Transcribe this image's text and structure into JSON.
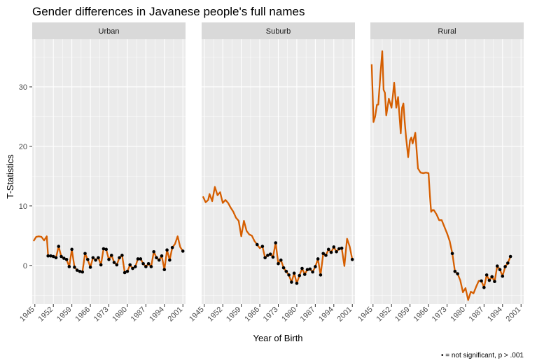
{
  "chart_data": {
    "type": "line",
    "title": "Gender differences in Javanese people's full names",
    "xlabel": "Year of Birth",
    "ylabel": "T-Statistics",
    "caption": "• = not significant, p > .001",
    "x_ticks": [
      1945,
      1952,
      1959,
      1966,
      1973,
      1980,
      1987,
      1994,
      2001
    ],
    "y_ticks": [
      0,
      10,
      20,
      30
    ],
    "xlim": [
      1944,
      2002
    ],
    "ylim": [
      -6.5,
      38
    ],
    "grid": true,
    "line_color": "#d55e00",
    "point_color": "#000000",
    "panel_bg": "#ebebeb",
    "strip_bg": "#d9d9d9",
    "panels": [
      {
        "label": "Urban",
        "x": [
          1944.5,
          1945.5,
          1946.5,
          1947.5,
          1948.5,
          1949.5,
          1950,
          1951,
          1952,
          1953,
          1954,
          1955,
          1956,
          1957,
          1958,
          1959,
          1960,
          1961,
          1962,
          1963,
          1964,
          1965,
          1966,
          1967,
          1968,
          1969,
          1970,
          1971,
          1972,
          1973,
          1974,
          1975,
          1976,
          1977,
          1978,
          1979,
          1980,
          1981,
          1982,
          1983,
          1984,
          1985,
          1986,
          1987,
          1988,
          1989,
          1990,
          1991,
          1992,
          1993,
          1994,
          1995,
          1996,
          1997,
          1998,
          1999,
          2000,
          2001
        ],
        "y": [
          4.1,
          4.8,
          4.9,
          4.8,
          4.2,
          4.9,
          1.6,
          1.6,
          1.5,
          1.3,
          3.2,
          1.5,
          1.2,
          1.0,
          -0.2,
          2.7,
          -0.3,
          -0.8,
          -1.0,
          -1.1,
          2.0,
          1.0,
          -0.3,
          1.3,
          0.9,
          1.3,
          0.1,
          2.8,
          2.7,
          1.0,
          1.7,
          0.5,
          0.1,
          1.3,
          1.7,
          -1.2,
          -1.0,
          0.1,
          -0.5,
          -0.2,
          1.1,
          1.1,
          0.3,
          -0.2,
          0.3,
          -0.2,
          2.3,
          1.3,
          0.9,
          1.6,
          -0.7,
          2.6,
          0.9,
          3.0,
          3.6,
          4.9,
          3.1,
          2.4
        ],
        "not_significant": [
          1950,
          1951,
          1952,
          1953,
          1954,
          1955,
          1956,
          1957,
          1958,
          1959,
          1960,
          1961,
          1962,
          1963,
          1964,
          1965,
          1966,
          1967,
          1968,
          1969,
          1970,
          1971,
          1972,
          1973,
          1974,
          1975,
          1976,
          1977,
          1978,
          1979,
          1980,
          1981,
          1982,
          1983,
          1984,
          1985,
          1986,
          1987,
          1988,
          1989,
          1990,
          1991,
          1992,
          1993,
          1994,
          1995,
          1996,
          1997,
          2001
        ]
      },
      {
        "label": "Suburb",
        "x": [
          1944.5,
          1945.5,
          1946.5,
          1947,
          1948,
          1949,
          1950,
          1951,
          1952,
          1953,
          1954,
          1955,
          1956,
          1957,
          1958,
          1959,
          1960,
          1961,
          1962,
          1963,
          1964,
          1965,
          1966,
          1967,
          1968,
          1969,
          1970,
          1971,
          1972,
          1973,
          1974,
          1975,
          1976,
          1977,
          1978,
          1979,
          1980,
          1981,
          1982,
          1983,
          1984,
          1985,
          1986,
          1987,
          1988,
          1989,
          1990,
          1991,
          1992,
          1993,
          1994,
          1995,
          1996,
          1997,
          1998,
          1999,
          2000,
          2001
        ],
        "y": [
          11.6,
          10.6,
          11.0,
          12.0,
          10.8,
          13.2,
          11.8,
          12.3,
          10.5,
          11.0,
          10.5,
          9.7,
          9.0,
          8.0,
          7.5,
          4.9,
          7.5,
          5.8,
          5.2,
          5.0,
          4.1,
          3.5,
          2.9,
          3.2,
          1.3,
          1.7,
          1.9,
          1.4,
          3.8,
          0.3,
          0.9,
          -0.4,
          -1.0,
          -1.6,
          -2.8,
          -1.3,
          -3.0,
          -1.7,
          -0.5,
          -1.5,
          -0.7,
          -0.6,
          -1.1,
          -0.2,
          1.1,
          -1.6,
          2.0,
          1.7,
          2.7,
          2.2,
          3.1,
          2.3,
          2.8,
          2.9,
          -0.1,
          4.5,
          3.2,
          1.0
        ],
        "not_significant": [
          1965,
          1967,
          1968,
          1969,
          1970,
          1971,
          1972,
          1973,
          1974,
          1975,
          1976,
          1977,
          1978,
          1979,
          1980,
          1981,
          1982,
          1983,
          1984,
          1985,
          1986,
          1987,
          1988,
          1989,
          1990,
          1991,
          1992,
          1993,
          1994,
          1995,
          1996,
          1997,
          2001
        ]
      },
      {
        "label": "Rural",
        "x": [
          1944.5,
          1945.2,
          1945.8,
          1946.5,
          1947,
          1947.8,
          1948.5,
          1949,
          1949.5,
          1950,
          1951,
          1952,
          1952.5,
          1953,
          1953.8,
          1954.5,
          1955.5,
          1956,
          1956.5,
          1957,
          1957.5,
          1958.3,
          1959,
          1959.5,
          1960,
          1961,
          1962,
          1963,
          1964,
          1965,
          1966,
          1966.5,
          1967,
          1967.5,
          1968,
          1969,
          1970,
          1971,
          1972,
          1973,
          1974,
          1975,
          1976,
          1977,
          1978,
          1979,
          1980,
          1981,
          1982,
          1983,
          1984,
          1985,
          1986,
          1987,
          1988,
          1989,
          1990,
          1991,
          1992,
          1993,
          1994,
          1995,
          1996,
          1997,
          1998,
          1999,
          2000,
          2001
        ],
        "y": [
          33.8,
          24.1,
          25.0,
          27.0,
          27.0,
          32.0,
          36.0,
          29.5,
          29.0,
          25.2,
          28.0,
          26.5,
          28.5,
          30.7,
          26.5,
          28.3,
          22.2,
          26.5,
          27.2,
          24.1,
          21.5,
          18.2,
          21.0,
          21.5,
          20.5,
          22.3,
          16.3,
          15.6,
          15.5,
          15.6,
          15.5,
          11.8,
          9.0,
          9.3,
          9.3,
          8.6,
          7.6,
          7.6,
          6.5,
          5.4,
          4.1,
          2.0,
          -1.0,
          -1.4,
          -2.5,
          -4.5,
          -3.8,
          -5.8,
          -4.4,
          -4.7,
          -3.6,
          -2.6,
          -2.6,
          -3.7,
          -1.6,
          -2.5,
          -1.9,
          -2.7,
          -0.1,
          -0.7,
          -1.8,
          -0.2,
          0.4,
          1.5,
          null,
          null,
          null,
          null
        ],
        "not_significant": [
          1975,
          1976,
          1977,
          1986,
          1987,
          1988,
          1989,
          1990,
          1991,
          1992,
          1993,
          1994,
          1995,
          1996,
          1997
        ]
      }
    ]
  }
}
